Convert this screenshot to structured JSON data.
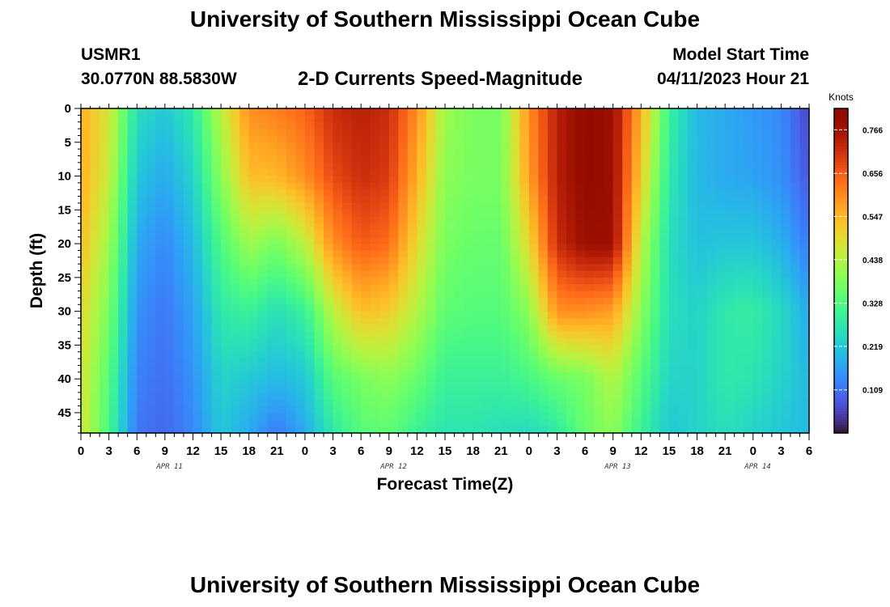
{
  "page": {
    "title": "University of Southern Mississippi Ocean Cube",
    "station": "USMR1",
    "coords": "30.0770N  88.5830W",
    "subtitle": "2-D Currents Speed-Magnitude",
    "model_label": "Model Start Time",
    "model_time": "04/11/2023 Hour 21"
  },
  "chart_data": {
    "type": "heatmap",
    "title": "2-D Currents Speed-Magnitude",
    "xlabel": "Forecast Time(Z)",
    "ylabel": "Depth (ft)",
    "x_tick_labels": [
      "0",
      "3",
      "6",
      "9",
      "12",
      "15",
      "18",
      "21",
      "0",
      "3",
      "6",
      "9",
      "12",
      "15",
      "18",
      "21",
      "0",
      "3",
      "6",
      "9",
      "12",
      "15",
      "18",
      "21",
      "0",
      "3",
      "6"
    ],
    "x_day_labels": [
      {
        "label": "APR 11",
        "hour": 9.5
      },
      {
        "label": "APR 12",
        "hour": 33.5
      },
      {
        "label": "APR 13",
        "hour": 57.5
      },
      {
        "label": "APR 14",
        "hour": 72.5
      }
    ],
    "xlim_hours": [
      0,
      78
    ],
    "y_ticks": [
      0,
      5,
      10,
      15,
      20,
      25,
      30,
      35,
      40,
      45
    ],
    "ylim": [
      0,
      48
    ],
    "y_inverted": true,
    "colorbar": {
      "unit": "Knots",
      "ticks": [
        0.766,
        0.656,
        0.547,
        0.438,
        0.328,
        0.219,
        0.109
      ],
      "range": [
        0,
        0.82
      ],
      "colormap": "turbo"
    },
    "depth_samples_ft": [
      0,
      10,
      20,
      30,
      40,
      48
    ],
    "speed_profiles_knots": [
      {
        "hour": 0,
        "speed": [
          0.56,
          0.56,
          0.54,
          0.5,
          0.48,
          0.48
        ]
      },
      {
        "hour": 3,
        "speed": [
          0.48,
          0.46,
          0.42,
          0.38,
          0.34,
          0.32
        ]
      },
      {
        "hour": 6,
        "speed": [
          0.26,
          0.22,
          0.18,
          0.15,
          0.13,
          0.12
        ]
      },
      {
        "hour": 9,
        "speed": [
          0.22,
          0.18,
          0.14,
          0.12,
          0.11,
          0.1
        ]
      },
      {
        "hour": 12,
        "speed": [
          0.28,
          0.24,
          0.2,
          0.17,
          0.15,
          0.14
        ]
      },
      {
        "hour": 15,
        "speed": [
          0.45,
          0.4,
          0.33,
          0.28,
          0.24,
          0.22
        ]
      },
      {
        "hour": 18,
        "speed": [
          0.6,
          0.54,
          0.42,
          0.3,
          0.22,
          0.18
        ]
      },
      {
        "hour": 21,
        "speed": [
          0.62,
          0.55,
          0.38,
          0.26,
          0.2,
          0.12
        ]
      },
      {
        "hour": 24,
        "speed": [
          0.65,
          0.6,
          0.45,
          0.3,
          0.22,
          0.18
        ]
      },
      {
        "hour": 27,
        "speed": [
          0.72,
          0.68,
          0.6,
          0.45,
          0.34,
          0.28
        ]
      },
      {
        "hour": 30,
        "speed": [
          0.74,
          0.72,
          0.66,
          0.54,
          0.38,
          0.34
        ]
      },
      {
        "hour": 33,
        "speed": [
          0.72,
          0.7,
          0.64,
          0.52,
          0.4,
          0.35
        ]
      },
      {
        "hour": 36,
        "speed": [
          0.6,
          0.56,
          0.5,
          0.44,
          0.36,
          0.3
        ]
      },
      {
        "hour": 39,
        "speed": [
          0.42,
          0.4,
          0.38,
          0.35,
          0.3,
          0.27
        ]
      },
      {
        "hour": 42,
        "speed": [
          0.38,
          0.38,
          0.36,
          0.34,
          0.3,
          0.27
        ]
      },
      {
        "hour": 45,
        "speed": [
          0.38,
          0.38,
          0.36,
          0.34,
          0.3,
          0.26
        ]
      },
      {
        "hour": 48,
        "speed": [
          0.6,
          0.58,
          0.5,
          0.4,
          0.32,
          0.25
        ]
      },
      {
        "hour": 51,
        "speed": [
          0.74,
          0.74,
          0.72,
          0.6,
          0.36,
          0.28
        ]
      },
      {
        "hour": 54,
        "speed": [
          0.8,
          0.8,
          0.78,
          0.6,
          0.38,
          0.36
        ]
      },
      {
        "hour": 57,
        "speed": [
          0.78,
          0.78,
          0.78,
          0.58,
          0.44,
          0.4
        ]
      },
      {
        "hour": 60,
        "speed": [
          0.56,
          0.52,
          0.45,
          0.4,
          0.34,
          0.3
        ]
      },
      {
        "hour": 63,
        "speed": [
          0.3,
          0.28,
          0.26,
          0.26,
          0.24,
          0.22
        ]
      },
      {
        "hour": 66,
        "speed": [
          0.2,
          0.2,
          0.21,
          0.24,
          0.24,
          0.24
        ]
      },
      {
        "hour": 69,
        "speed": [
          0.18,
          0.18,
          0.22,
          0.28,
          0.28,
          0.26
        ]
      },
      {
        "hour": 72,
        "speed": [
          0.16,
          0.17,
          0.22,
          0.29,
          0.27,
          0.24
        ]
      },
      {
        "hour": 75,
        "speed": [
          0.14,
          0.15,
          0.19,
          0.25,
          0.24,
          0.22
        ]
      },
      {
        "hour": 78,
        "speed": [
          0.06,
          0.08,
          0.12,
          0.18,
          0.2,
          0.2
        ]
      }
    ]
  }
}
